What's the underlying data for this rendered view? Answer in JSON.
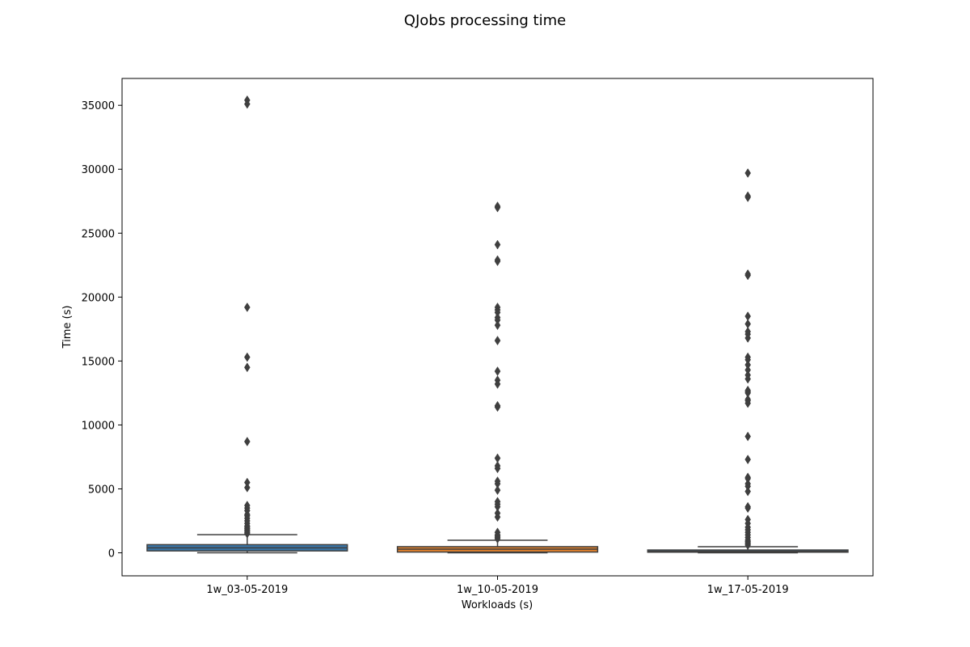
{
  "chart_data": {
    "type": "box",
    "title": "QJobs processing time",
    "xlabel": "Workloads (s)",
    "ylabel": "Time (s)",
    "ylim": [
      -1800,
      37100
    ],
    "yticks": [
      0,
      5000,
      10000,
      15000,
      20000,
      25000,
      30000,
      35000
    ],
    "grid": false,
    "categories": [
      "1w_03-05-2019",
      "1w_10-05-2019",
      "1w_17-05-2019"
    ],
    "series": [
      {
        "color": "#3a75a6",
        "whisker_low": 0,
        "q1": 150,
        "median": 390,
        "q3": 640,
        "whisker_high": 1420,
        "outliers": [
          35400,
          35100,
          19200,
          15300,
          14500,
          8700,
          5500,
          5100,
          3700,
          3500,
          3300,
          3000,
          2900,
          2700,
          2500,
          2300,
          2100,
          2000,
          1900,
          1800,
          1700,
          1600,
          1500
        ]
      },
      {
        "color": "#e1812c",
        "whisker_low": 0,
        "q1": 60,
        "median": 290,
        "q3": 480,
        "whisker_high": 980,
        "outliers": [
          27100,
          27000,
          24100,
          22900,
          22800,
          19200,
          19000,
          18800,
          18400,
          18200,
          17800,
          16600,
          14200,
          13500,
          13200,
          11500,
          11400,
          7400,
          6800,
          6600,
          5600,
          5400,
          4900,
          4000,
          3800,
          3600,
          3100,
          2800,
          1600,
          1400,
          1300,
          1200,
          1100
        ]
      },
      {
        "color": "#3a75a6",
        "whisker_low": 0,
        "q1": 50,
        "median": 120,
        "q3": 220,
        "whisker_high": 480,
        "outliers": [
          29700,
          27900,
          27800,
          21800,
          21700,
          18500,
          17900,
          17300,
          17100,
          16800,
          15300,
          15100,
          14700,
          14300,
          13900,
          13600,
          12700,
          12600,
          12500,
          12000,
          11900,
          11700,
          9100,
          7300,
          5900,
          5800,
          5400,
          5200,
          4800,
          3600,
          3500,
          2600,
          2300,
          2000,
          1800,
          1600,
          1400,
          1200,
          1000,
          900,
          800,
          700,
          600
        ]
      }
    ]
  }
}
